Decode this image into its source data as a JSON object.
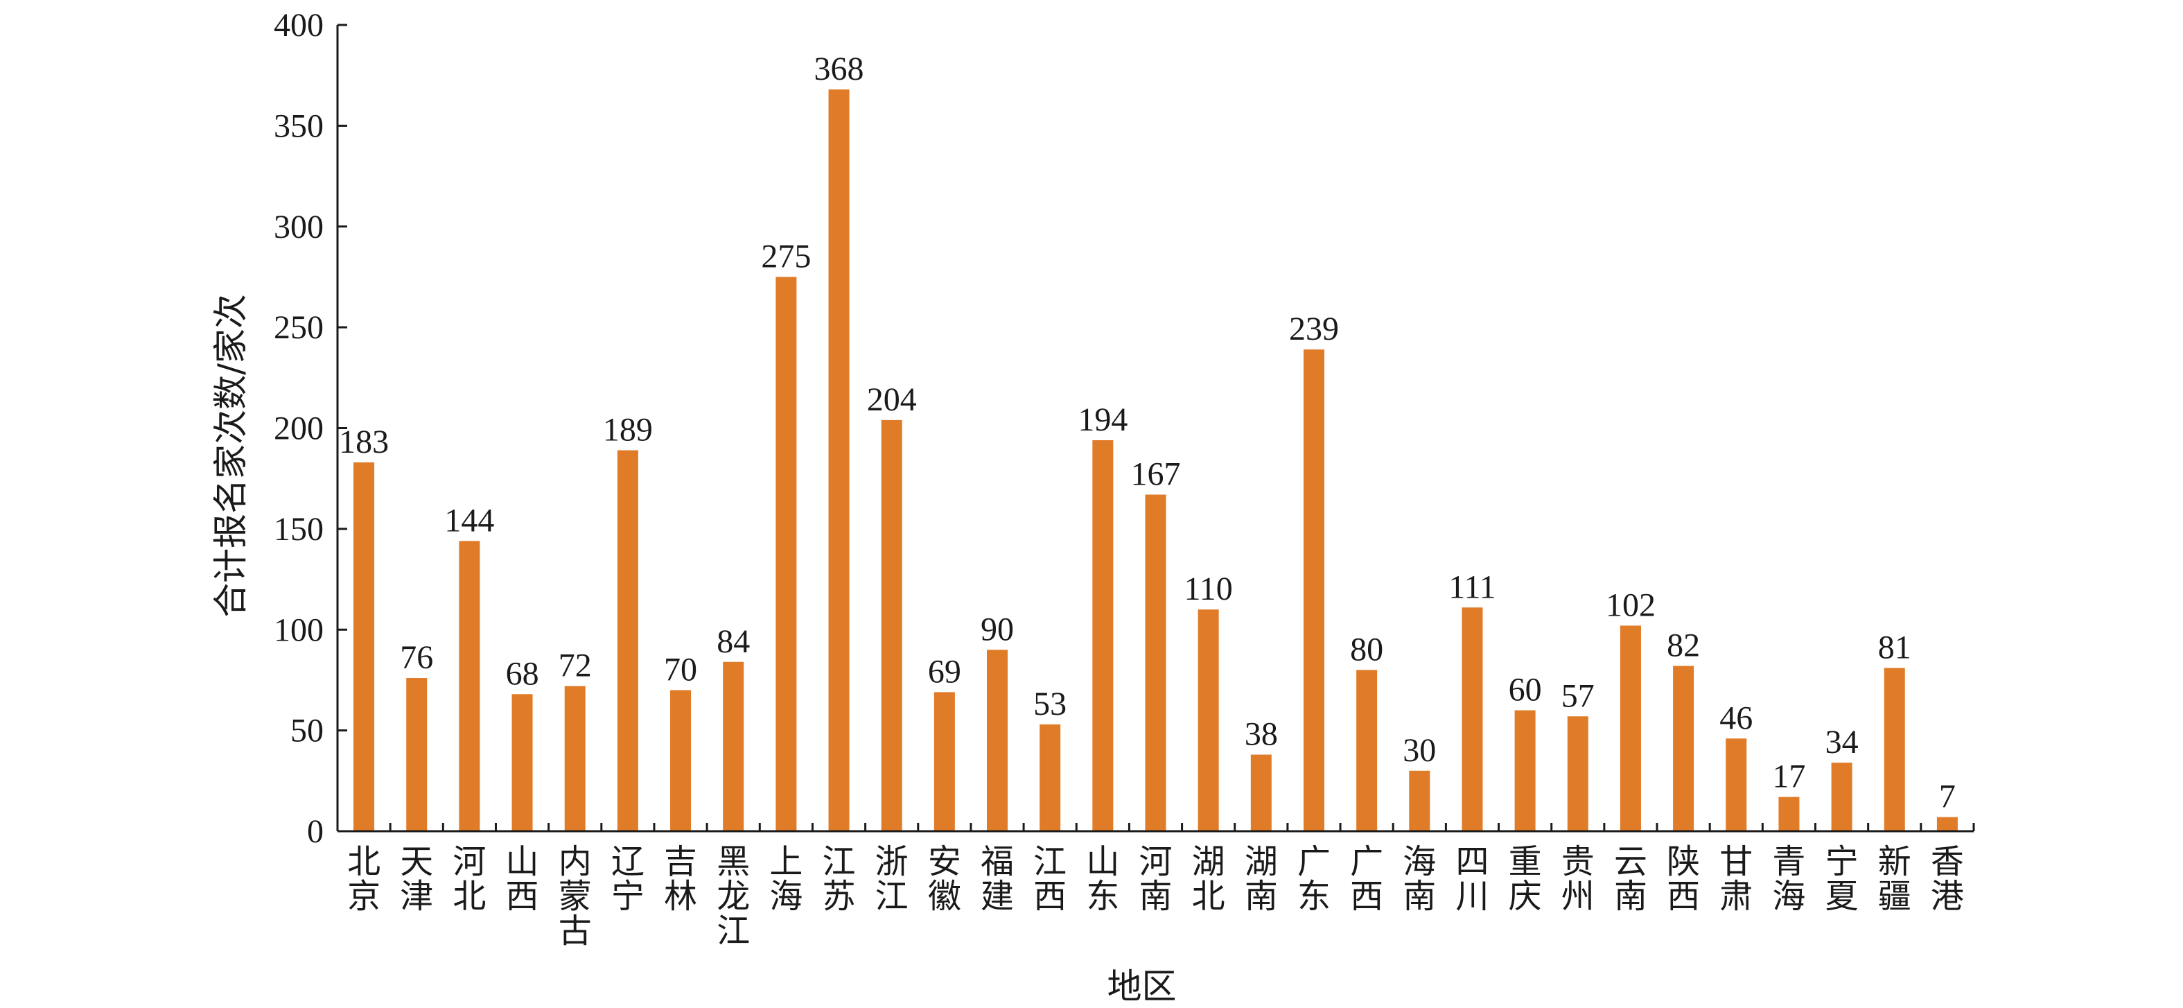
{
  "chart_data": {
    "type": "bar",
    "xlabel": "地区",
    "ylabel": "合计报名家次数/家次",
    "ylim": [
      0,
      400
    ],
    "yticks": [
      0,
      50,
      100,
      150,
      200,
      250,
      300,
      350,
      400
    ],
    "grid": false,
    "bar_color": "#e07b28",
    "categories": [
      "北京",
      "天津",
      "河北",
      "山西",
      "内蒙古",
      "辽宁",
      "吉林",
      "黑龙江",
      "上海",
      "江苏",
      "浙江",
      "安徽",
      "福建",
      "江西",
      "山东",
      "河南",
      "湖北",
      "湖南",
      "广东",
      "广西",
      "海南",
      "四川",
      "重庆",
      "贵州",
      "云南",
      "陕西",
      "甘肃",
      "青海",
      "宁夏",
      "新疆",
      "香港"
    ],
    "values": [
      183,
      76,
      144,
      68,
      72,
      189,
      70,
      84,
      275,
      368,
      204,
      69,
      90,
      53,
      194,
      167,
      110,
      38,
      239,
      80,
      30,
      111,
      60,
      57,
      102,
      82,
      46,
      17,
      34,
      81,
      7
    ]
  }
}
